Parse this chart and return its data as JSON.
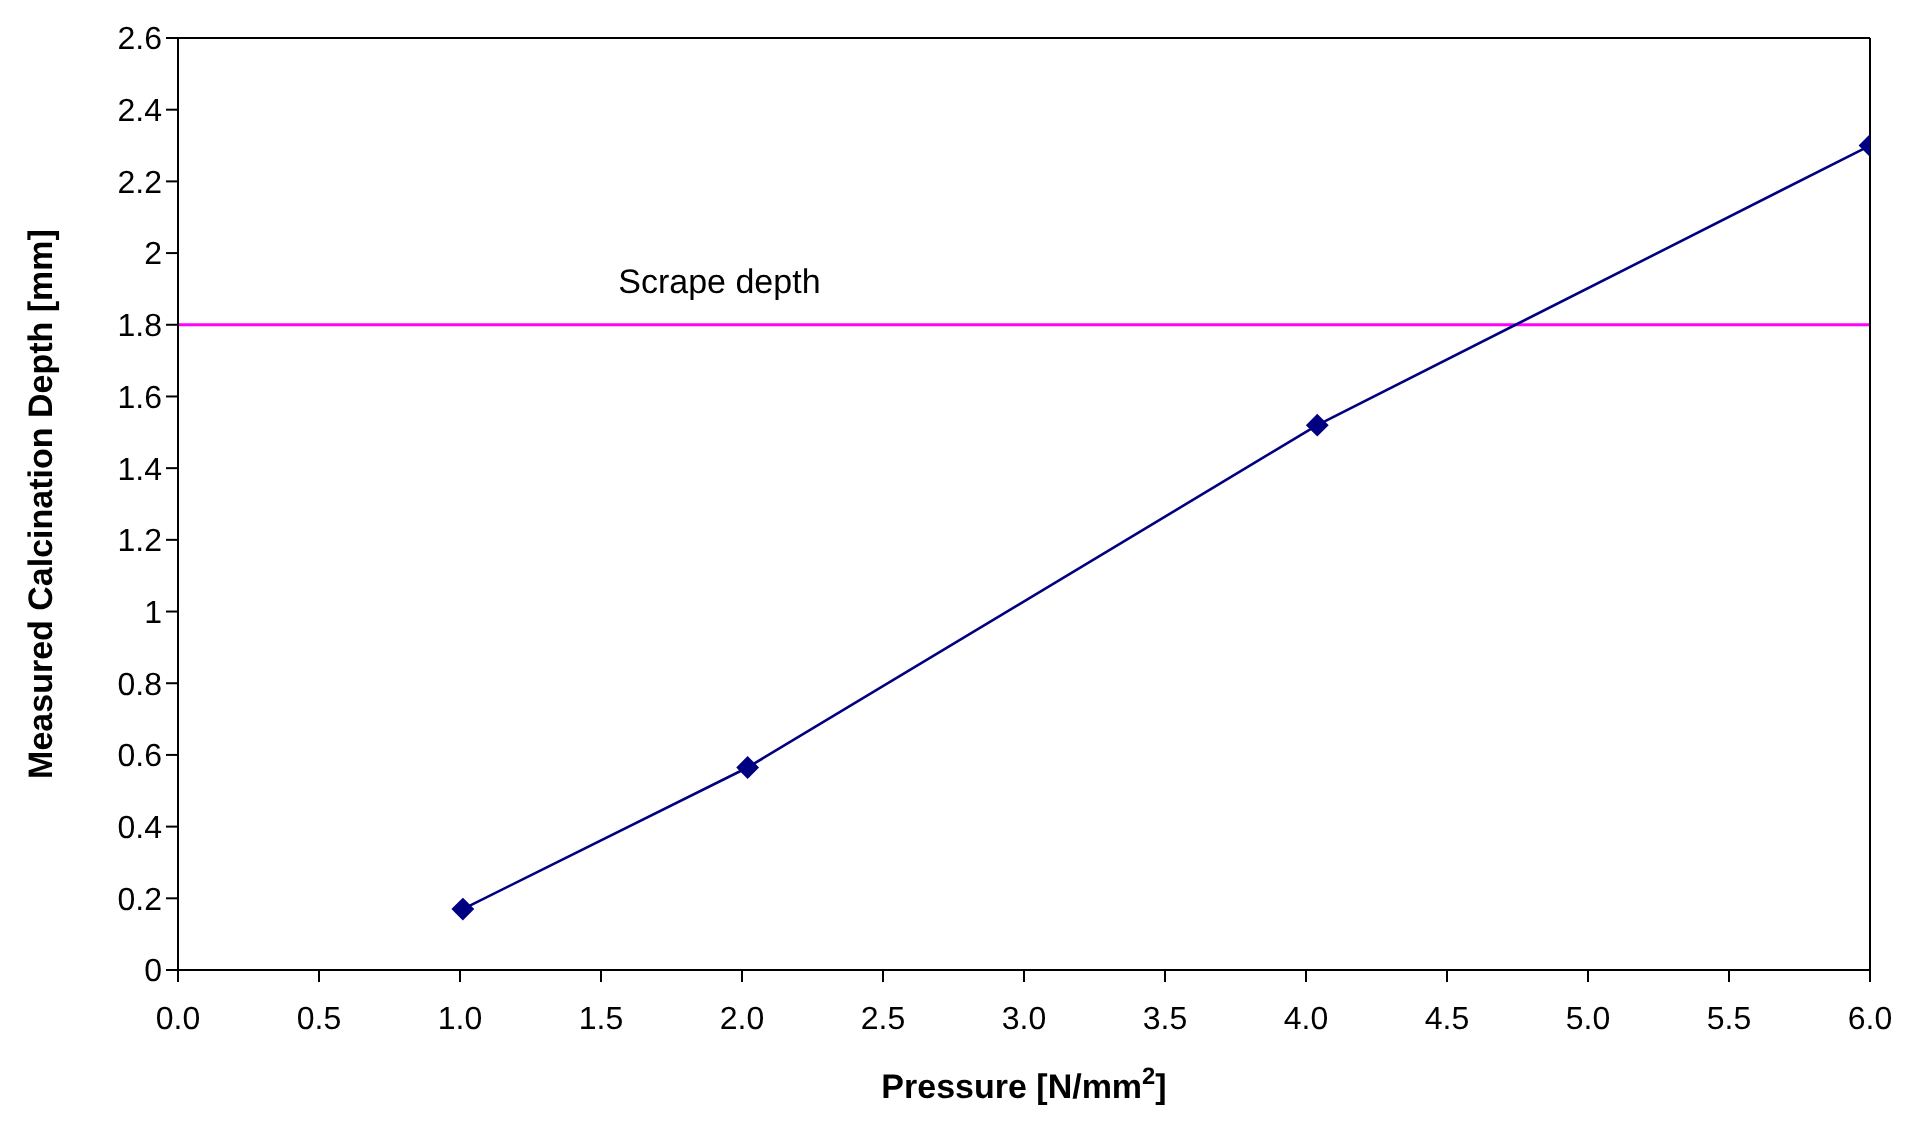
{
  "chart_data": {
    "type": "line",
    "xlabel": "Pressure [N/mm$^{2}$]",
    "ylabel": "Measured Calcination Depth [mm]",
    "x": [
      1.01,
      2.02,
      4.04,
      6.0
    ],
    "series": [
      {
        "color": "#000080",
        "values": [
          0.17,
          0.565,
          1.52,
          2.3
        ]
      }
    ],
    "marker": "diamond",
    "line_style": "solid",
    "grid": false,
    "legend": false,
    "xlim": [
      0,
      6
    ],
    "ylim": [
      0,
      2.6
    ],
    "xticks": [
      {
        "value": 0,
        "label": "0.0"
      },
      {
        "value": 0.5,
        "label": "0.5"
      },
      {
        "value": 1,
        "label": "1.0"
      },
      {
        "value": 1.5,
        "label": "1.5"
      },
      {
        "value": 2,
        "label": "2.0"
      },
      {
        "value": 2.5,
        "label": "2.5"
      },
      {
        "value": 3,
        "label": "3.0"
      },
      {
        "value": 3.5,
        "label": "3.5"
      },
      {
        "value": 4,
        "label": "4.0"
      },
      {
        "value": 4.5,
        "label": "4.5"
      },
      {
        "value": 5,
        "label": "5.0"
      },
      {
        "value": 5.5,
        "label": "5.5"
      },
      {
        "value": 6,
        "label": "6.0"
      }
    ],
    "yticks": [
      0,
      0.2,
      0.4,
      0.6,
      0.8,
      1,
      1.2,
      1.4,
      1.6,
      1.8,
      2,
      2.2,
      2.4,
      2.6
    ],
    "ref_lines": [
      {
        "axis": "y",
        "value": 1.8,
        "label": "Scrape depth",
        "color": "#ff00ff",
        "line_style": "solid"
      }
    ]
  }
}
